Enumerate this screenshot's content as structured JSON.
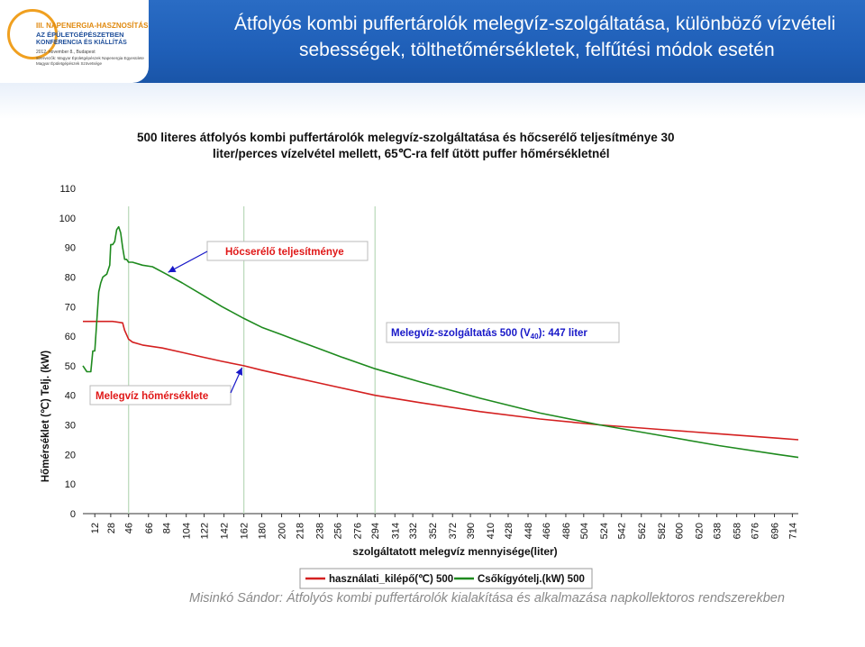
{
  "logo": {
    "line1": "III. NAPENERGIA-HASZNOSÍTÁS",
    "line2": "AZ ÉPÜLETGÉPÉSZETBEN",
    "line3": "KONFERENCIA ÉS KIÁLLÍTÁS",
    "line4": "2012. november 8., Budapest",
    "line5": "Szervezők: Magyar Épületgépészek Napenergia Egyesülete",
    "line6": "Magyar Épületgépészek Szövetsége"
  },
  "slide": {
    "title_line1": "Átfolyós kombi puffertárolók melegvíz-szolgáltatása, különböző vízvételi",
    "title_line2": "sebességek, tölthetőmérsékletek, felfűtési módok esetén",
    "footer": "Misinkó Sándor: Átfolyós kombi puffertárolók kialakítása és alkalmazása napkollektoros rendszerekben"
  },
  "colors": {
    "header_blue": "#1f5fb8",
    "red_series": "#d42020",
    "green_series": "#1e8a1e",
    "annotation_red": "#e01818",
    "annotation_blue": "#1818c8"
  },
  "chart_data": {
    "type": "line",
    "title_line1": "500 literes átfolyós kombi puffertárolók melegvíz-szolgáltatása és hőcserélő teljesítménye 30",
    "title_line2": "liter/perces vízelvétel mellett, 65℃-ra felf űtött puffer hőmérsékletnél",
    "xlabel": "szolgáltatott melegvíz mennyisége(liter)",
    "ylabel": "Hőmérséklet (℃) Telj. (kW)",
    "ylim": [
      0,
      110
    ],
    "yticks": [
      0,
      10,
      20,
      30,
      40,
      50,
      60,
      70,
      80,
      90,
      100,
      110
    ],
    "xlim": [
      0,
      720
    ],
    "xticks": [
      12,
      28,
      46,
      66,
      84,
      104,
      122,
      142,
      162,
      180,
      200,
      218,
      238,
      256,
      276,
      294,
      314,
      332,
      352,
      372,
      390,
      410,
      428,
      448,
      466,
      486,
      504,
      524,
      542,
      562,
      582,
      600,
      620,
      638,
      658,
      676,
      696,
      714
    ],
    "grid": false,
    "legend_position": "bottom",
    "vlines_x": [
      46,
      162,
      294
    ],
    "series": [
      {
        "name": "használati_kilépő(℃) 500",
        "color": "#d42020",
        "x": [
          0,
          8,
          20,
          30,
          40,
          42,
          44,
          46,
          50,
          60,
          80,
          100,
          120,
          140,
          162,
          180,
          200,
          240,
          294,
          340,
          400,
          460,
          520,
          580,
          640,
          700,
          720
        ],
        "y": [
          65,
          65,
          65,
          65,
          64.5,
          62,
          60.5,
          59,
          58,
          57,
          56,
          54.5,
          53,
          51.5,
          50,
          48.5,
          47,
          44,
          40,
          37.5,
          34.5,
          32,
          30,
          28.5,
          27,
          25.5,
          25
        ]
      },
      {
        "name": "Csőkígyótelj.(kW) 500",
        "color": "#1e8a1e",
        "x": [
          0,
          4,
          8,
          10,
          12,
          14,
          16,
          18,
          20,
          24,
          27,
          28,
          30,
          32,
          34,
          36,
          38,
          40,
          42,
          44,
          46,
          50,
          60,
          70,
          84,
          100,
          120,
          140,
          162,
          180,
          200,
          220,
          240,
          260,
          294,
          340,
          400,
          460,
          520,
          580,
          640,
          700,
          720
        ],
        "y": [
          50,
          48,
          48,
          55,
          55,
          65,
          75,
          78,
          80,
          81,
          84,
          91,
          91,
          92,
          96,
          97,
          95,
          90,
          86,
          86,
          85,
          85,
          84,
          83.5,
          81,
          78,
          74,
          70,
          66,
          63,
          60.5,
          58,
          55.5,
          53,
          49,
          44.5,
          39,
          34,
          30,
          26.5,
          23,
          20,
          19
        ]
      }
    ],
    "annotations": [
      {
        "text": "Hőcserélő teljesítménye",
        "color": "#e01818",
        "arrow_to_x": 84,
        "arrow_to_y": 81
      },
      {
        "text": "Melegvíz-szolgáltatás 500 (V",
        "sub": "40",
        "text_after": "): 447 liter",
        "color": "#1818c8"
      },
      {
        "text": "Melegvíz hőmérséklete",
        "color": "#e01818",
        "arrow_to_x": 162,
        "arrow_to_y": 50
      }
    ]
  }
}
